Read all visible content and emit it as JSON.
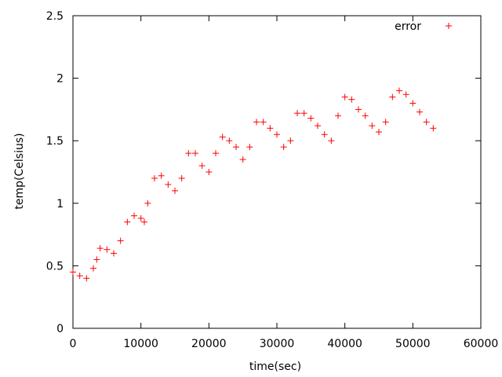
{
  "chart_data": {
    "type": "scatter",
    "xlabel": "time(sec)",
    "ylabel": "temp(Celsius)",
    "xlim": [
      0,
      60000
    ],
    "ylim": [
      0,
      2.5
    ],
    "x_ticks": [
      0,
      10000,
      20000,
      30000,
      40000,
      50000,
      60000
    ],
    "y_ticks": [
      0,
      0.5,
      1,
      1.5,
      2,
      2.5
    ],
    "x_tick_labels": [
      "0",
      "10000",
      "20000",
      "30000",
      "40000",
      "50000",
      "60000"
    ],
    "y_tick_labels": [
      "0",
      "0.5",
      "1",
      "1.5",
      "2",
      "2.5"
    ],
    "grid": false,
    "legend_position": "top-right",
    "colors": {
      "series": "#ff0000",
      "axis": "#000000"
    },
    "series": [
      {
        "name": "error",
        "marker": "+",
        "x": [
          0,
          1000,
          2000,
          3000,
          3500,
          4000,
          5000,
          6000,
          7000,
          8000,
          9000,
          10000,
          10500,
          11000,
          12000,
          13000,
          14000,
          15000,
          16000,
          17000,
          18000,
          19000,
          20000,
          21000,
          22000,
          23000,
          24000,
          25000,
          26000,
          27000,
          28000,
          29000,
          30000,
          31000,
          32000,
          33000,
          34000,
          35000,
          36000,
          37000,
          38000,
          39000,
          40000,
          41000,
          42000,
          43000,
          44000,
          45000,
          46000,
          47000,
          48000,
          49000,
          50000,
          51000,
          52000,
          53000
        ],
        "y": [
          0.45,
          0.42,
          0.4,
          0.48,
          0.55,
          0.64,
          0.63,
          0.6,
          0.7,
          0.85,
          0.9,
          0.88,
          0.85,
          1.0,
          1.2,
          1.22,
          1.15,
          1.1,
          1.2,
          1.4,
          1.4,
          1.3,
          1.25,
          1.4,
          1.53,
          1.5,
          1.45,
          1.35,
          1.45,
          1.65,
          1.65,
          1.6,
          1.55,
          1.45,
          1.5,
          1.72,
          1.72,
          1.68,
          1.62,
          1.55,
          1.5,
          1.7,
          1.85,
          1.83,
          1.75,
          1.7,
          1.62,
          1.57,
          1.65,
          1.85,
          1.9,
          1.87,
          1.8,
          1.73,
          1.65,
          1.6
        ]
      }
    ]
  }
}
